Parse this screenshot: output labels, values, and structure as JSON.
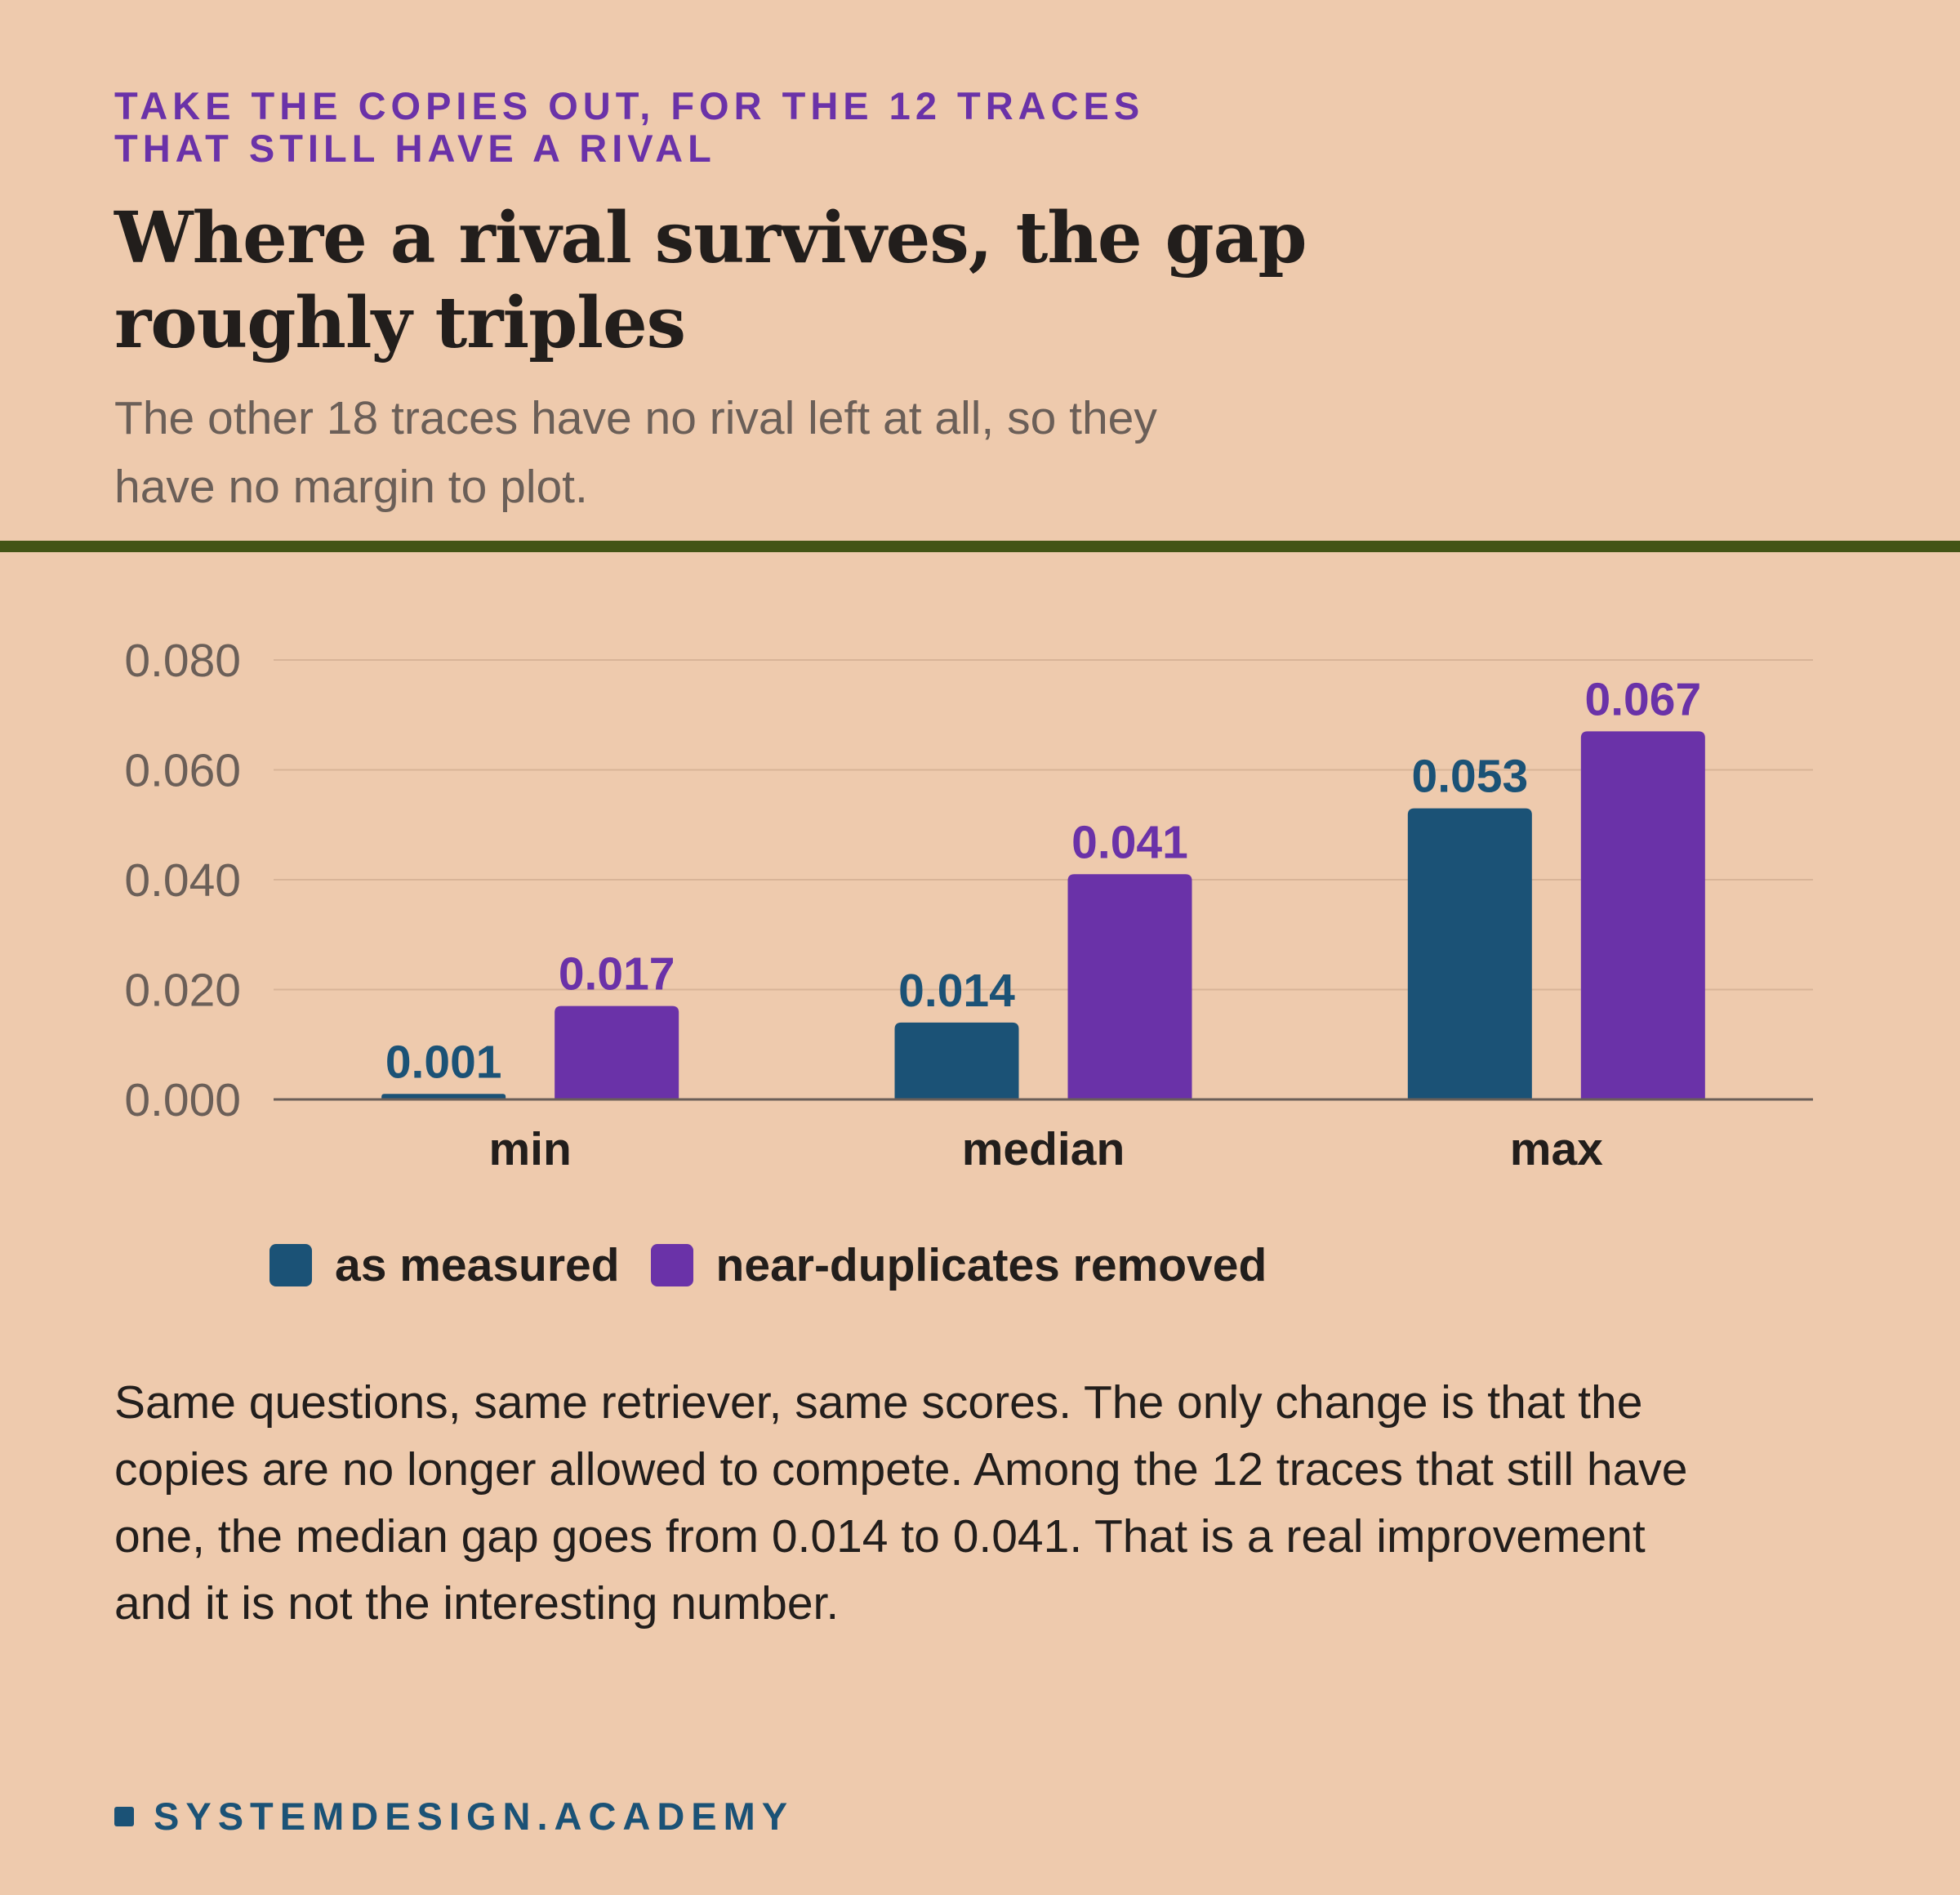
{
  "header": {
    "eyebrow_line1": "TAKE THE COPIES OUT, FOR THE 12 TRACES",
    "eyebrow_line2": "THAT STILL HAVE A RIVAL",
    "headline_line1": "Where a rival survives, the gap",
    "headline_line2": "roughly triples",
    "subhead_line1": "The other 18 traces have no rival left at all, so they",
    "subhead_line2": "have no margin to plot."
  },
  "colors": {
    "background": "#eecaad",
    "rule": "#435416",
    "as_measured": "#1b5276",
    "near_duplicates_removed": "#6a32a8",
    "text_dark": "#221e1c",
    "text_muted": "#6b5f58",
    "grid": "#d8b498",
    "axis": "#6b5f58"
  },
  "chart_data": {
    "type": "bar",
    "categories": [
      "min",
      "median",
      "max"
    ],
    "series": [
      {
        "name": "as measured",
        "values": [
          0.001,
          0.014,
          0.053
        ],
        "labels": [
          "0.001",
          "0.014",
          "0.053"
        ]
      },
      {
        "name": "near-duplicates removed",
        "values": [
          0.017,
          0.041,
          0.067
        ],
        "labels": [
          "0.017",
          "0.041",
          "0.067"
        ]
      }
    ],
    "yticks": [
      "0.000",
      "0.020",
      "0.040",
      "0.060",
      "0.080"
    ],
    "ytick_values": [
      0,
      0.02,
      0.04,
      0.06,
      0.08
    ],
    "ylim": [
      0,
      0.08
    ],
    "grid": true,
    "legend_position": "bottom-left"
  },
  "body": {
    "line1": "Same questions, same retriever, same scores. The only change is that the",
    "line2": "copies are no longer allowed to compete. Among the 12 traces that still have",
    "line3": "one, the median gap goes from 0.014 to 0.041. That is a real improvement",
    "line4": "and it is not the interesting number."
  },
  "footer": {
    "brand": "SYSTEMDESIGN.ACADEMY"
  }
}
